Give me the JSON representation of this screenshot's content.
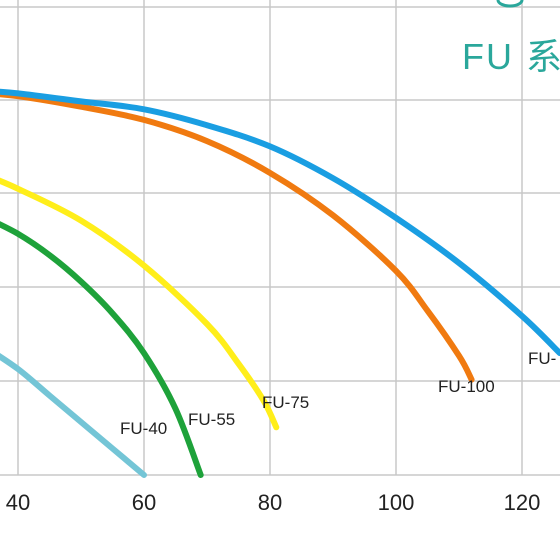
{
  "chart_data": {
    "type": "line",
    "title": "FU 系",
    "title_color": "#2aa79b",
    "xlabel": "",
    "ylabel": "",
    "xlim": [
      35,
      126
    ],
    "x_ticks": [
      40,
      60,
      80,
      100,
      120
    ],
    "grid": true,
    "series": [
      {
        "name": "FU-40",
        "color": "#74c5d6",
        "x": [
          35,
          40,
          45,
          50,
          55,
          60
        ],
        "y": [
          0.48,
          0.4,
          0.3,
          0.2,
          0.1,
          0.0
        ]
      },
      {
        "name": "FU-55",
        "color": "#1ea23a",
        "x": [
          35,
          40,
          45,
          50,
          55,
          60,
          65,
          69
        ],
        "y": [
          0.97,
          0.91,
          0.83,
          0.73,
          0.61,
          0.46,
          0.25,
          0.0
        ]
      },
      {
        "name": "FU-75",
        "color": "#ffee1a",
        "x": [
          35,
          40,
          50,
          60,
          70,
          75,
          79,
          81
        ],
        "y": [
          1.13,
          1.08,
          0.96,
          0.79,
          0.57,
          0.42,
          0.28,
          0.18
        ]
      },
      {
        "name": "FU-100",
        "color": "#f07a10",
        "x": [
          35,
          40,
          50,
          60,
          70,
          80,
          90,
          100,
          105,
          110,
          112
        ],
        "y": [
          1.44,
          1.43,
          1.39,
          1.34,
          1.26,
          1.14,
          0.98,
          0.77,
          0.62,
          0.45,
          0.36
        ]
      },
      {
        "name": "FU-",
        "color": "#1a9ee2",
        "x": [
          35,
          40,
          50,
          60,
          70,
          80,
          90,
          100,
          110,
          120,
          126
        ],
        "y": [
          1.45,
          1.44,
          1.41,
          1.38,
          1.32,
          1.24,
          1.12,
          0.97,
          0.8,
          0.6,
          0.46
        ]
      }
    ]
  }
}
